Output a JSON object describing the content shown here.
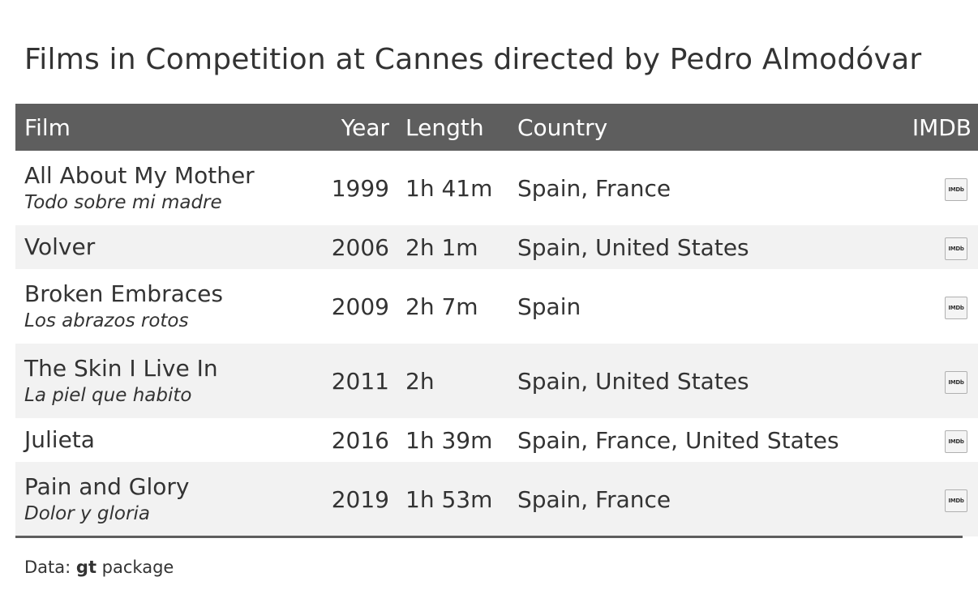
{
  "title": "Films in Competition at Cannes directed by Pedro Almodóvar",
  "columns": {
    "film": "Film",
    "year": "Year",
    "length": "Length",
    "country": "Country",
    "imdb": "IMDB"
  },
  "rows": [
    {
      "film": "All About My Mother",
      "original": "Todo sobre mi madre",
      "year": "1999",
      "length": "1h 41m",
      "country": "Spain, France",
      "imdb_icon": "IMDb"
    },
    {
      "film": "Volver",
      "original": "",
      "year": "2006",
      "length": "2h 1m",
      "country": "Spain, United States",
      "imdb_icon": "IMDb"
    },
    {
      "film": "Broken Embraces",
      "original": "Los abrazos rotos",
      "year": "2009",
      "length": "2h 7m",
      "country": "Spain",
      "imdb_icon": "IMDb"
    },
    {
      "film": "The Skin I Live In",
      "original": "La piel que habito",
      "year": "2011",
      "length": "2h",
      "country": "Spain, United States",
      "imdb_icon": "IMDb"
    },
    {
      "film": "Julieta",
      "original": "",
      "year": "2016",
      "length": "1h 39m",
      "country": "Spain, France, United States",
      "imdb_icon": "IMDb"
    },
    {
      "film": "Pain and Glory",
      "original": "Dolor y gloria",
      "year": "2019",
      "length": "1h 53m",
      "country": "Spain, France",
      "imdb_icon": "IMDb"
    }
  ],
  "source": {
    "prefix": "Data: ",
    "bold": "gt",
    "suffix": " package"
  },
  "colors": {
    "header_bg": "#5e5e5e",
    "stripe_bg": "#f2f2f2",
    "text": "#333333"
  }
}
